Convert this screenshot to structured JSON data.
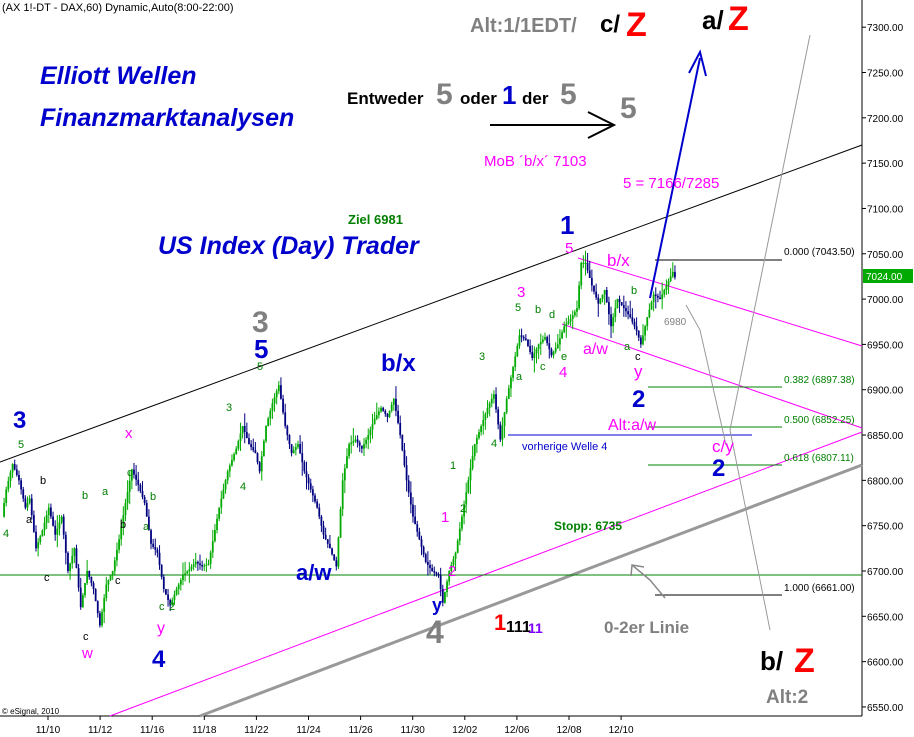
{
  "header": "(AX 1!-DT - DAX,60) Dynamic,Auto(8:00-22:00)",
  "footer_credit": "© eSignal, 2010",
  "chart_data": {
    "type": "candlestick",
    "symbol": "DAX",
    "interval": "60",
    "ylim": [
      6540,
      7330
    ],
    "y_ticks": [
      6550,
      6600,
      6650,
      6700,
      6750,
      6800,
      6850,
      6900,
      6950,
      7000,
      7050,
      7100,
      7150,
      7200,
      7250,
      7300
    ],
    "y_tick_labels": [
      "6550.00",
      "6600.00",
      "6650.00",
      "6700.00",
      "6750.00",
      "6800.00",
      "6850.00",
      "6900.00",
      "6950.00",
      "7000.00",
      "7050.00",
      "7100.00",
      "7150.00",
      "7200.00",
      "7250.00",
      "7300.00"
    ],
    "x_tick_labels": [
      "11/10",
      "11/12",
      "11/16",
      "11/18",
      "11/22",
      "11/24",
      "11/26",
      "11/30",
      "12/02",
      "12/06",
      "12/08",
      "12/10"
    ],
    "last_price": "7024.00",
    "path_points": [
      [
        0,
        6760
      ],
      [
        2,
        6790
      ],
      [
        5,
        6818
      ],
      [
        8,
        6800
      ],
      [
        11,
        6770
      ],
      [
        13,
        6780
      ],
      [
        16,
        6725
      ],
      [
        19,
        6745
      ],
      [
        22,
        6770
      ],
      [
        25,
        6740
      ],
      [
        28,
        6760
      ],
      [
        31,
        6700
      ],
      [
        34,
        6725
      ],
      [
        37,
        6660
      ],
      [
        40,
        6700
      ],
      [
        43,
        6680
      ],
      [
        46,
        6640
      ],
      [
        49,
        6685
      ],
      [
        52,
        6700
      ],
      [
        55,
        6735
      ],
      [
        58,
        6775
      ],
      [
        61,
        6812
      ],
      [
        64,
        6795
      ],
      [
        67,
        6775
      ],
      [
        70,
        6730
      ],
      [
        73,
        6720
      ],
      [
        76,
        6680
      ],
      [
        79,
        6662
      ],
      [
        82,
        6680
      ],
      [
        85,
        6695
      ],
      [
        88,
        6702
      ],
      [
        91,
        6710
      ],
      [
        94,
        6705
      ],
      [
        97,
        6708
      ],
      [
        102,
        6770
      ],
      [
        106,
        6810
      ],
      [
        110,
        6835
      ],
      [
        113,
        6860
      ],
      [
        116,
        6840
      ],
      [
        119,
        6830
      ],
      [
        121,
        6810
      ],
      [
        124,
        6860
      ],
      [
        127,
        6885
      ],
      [
        130,
        6905
      ],
      [
        133,
        6860
      ],
      [
        136,
        6830
      ],
      [
        139,
        6840
      ],
      [
        142,
        6810
      ],
      [
        145,
        6790
      ],
      [
        148,
        6770
      ],
      [
        151,
        6740
      ],
      [
        154,
        6725
      ],
      [
        157,
        6705
      ],
      [
        160,
        6800
      ],
      [
        163,
        6840
      ],
      [
        166,
        6845
      ],
      [
        169,
        6835
      ],
      [
        172,
        6850
      ],
      [
        175,
        6868
      ],
      [
        178,
        6880
      ],
      [
        181,
        6870
      ],
      [
        184,
        6890
      ],
      [
        187,
        6850
      ],
      [
        190,
        6800
      ],
      [
        193,
        6760
      ],
      [
        196,
        6735
      ],
      [
        199,
        6710
      ],
      [
        202,
        6700
      ],
      [
        205,
        6695
      ],
      [
        207,
        6665
      ],
      [
        210,
        6700
      ],
      [
        213,
        6720
      ],
      [
        216,
        6760
      ],
      [
        219,
        6800
      ],
      [
        222,
        6840
      ],
      [
        225,
        6860
      ],
      [
        228,
        6880
      ],
      [
        231,
        6895
      ],
      [
        234,
        6845
      ],
      [
        237,
        6890
      ],
      [
        240,
        6925
      ],
      [
        243,
        6960
      ],
      [
        246,
        6955
      ],
      [
        249,
        6935
      ],
      [
        252,
        6950
      ],
      [
        255,
        6958
      ],
      [
        258,
        6938
      ],
      [
        261,
        6950
      ],
      [
        264,
        6970
      ],
      [
        267,
        6978
      ],
      [
        270,
        6990
      ],
      [
        272,
        7040
      ],
      [
        274,
        7040
      ],
      [
        277,
        7015
      ],
      [
        280,
        6995
      ],
      [
        283,
        7010
      ],
      [
        286,
        6970
      ],
      [
        289,
        7000
      ],
      [
        292,
        6990
      ],
      [
        295,
        6980
      ],
      [
        298,
        6965
      ],
      [
        300,
        6950
      ],
      [
        303,
        6980
      ],
      [
        306,
        7005
      ],
      [
        309,
        7000
      ],
      [
        312,
        7015
      ],
      [
        315,
        7030
      ],
      [
        316,
        7024
      ]
    ],
    "fib_levels": [
      {
        "label": "0.000 (7043.50)",
        "value": 7043.5
      },
      {
        "label": "0.382 (6897.38)",
        "value": 6897.38
      },
      {
        "label": "0.500 (6852.25)",
        "value": 6852.25
      },
      {
        "label": "0.618 (6807.11)",
        "value": 6807.11
      },
      {
        "label": "1.000 (6661.00)",
        "value": 6661.0
      }
    ],
    "horizontal_levels": {
      "support_green": 6683,
      "previous_wave4": 6845
    },
    "title": "US Index (Day) Trader"
  },
  "titles": {
    "brand_line1": "Elliott Wellen",
    "brand_line2": "Finanzmarktanalysen",
    "us_index": "US Index (Day) Trader"
  },
  "annotations": {
    "entweder": "Entweder",
    "big5a": "5",
    "oder": "oder",
    "blue1": "1",
    "der": "der",
    "big5b": "5",
    "big5c": "5",
    "alt1": "Alt:1/1EDT/",
    "c_slash": "c/",
    "z_top": "Z",
    "a_slash": "a/",
    "z_top2": "Z",
    "mob": "MoB ´b/x´ 7103",
    "target5": "5 = 7166/7285",
    "ziel": "Ziel 6981",
    "stopp": "Stopp: 6735",
    "vorherige": "vorherige Welle 4",
    "linie": "0-2er Linie",
    "b_slash": "b/ ",
    "z_bottom": "Z",
    "alt2": "Alt:2",
    "ba6980": "6980",
    "alt_aw": "Alt:a/w",
    "c_y": "c/y",
    "two_right": "2",
    "one_red": "1",
    "ones_black": "111",
    "ones_violet": "11",
    "bx_wave": "b/x",
    "aw_wave": "a/w",
    "bx_right": "b/x",
    "aw_right": "a/w",
    "y_mid": "y",
    "two_mid": "2",
    "one_top": "1",
    "five_top": "5",
    "three_left": "3",
    "five_left": "5",
    "three_gray": "3",
    "five_blue": "5",
    "four_blue": "4",
    "four_gray": "4",
    "x_mag": "x",
    "w_mag": "w",
    "y_mag": "y",
    "y_bottom": "y",
    "two_mag_bottom": "2",
    "one_mag": "1",
    "three_mag": "3",
    "four_mag": "4",
    "five_mag_top": "5",
    "a_small": "a",
    "b_small": "b",
    "c_small": "c",
    "d_small": "d",
    "e_small": "e",
    "one_g": "1",
    "two_g": "2",
    "three_g": "3",
    "four_g": "4",
    "five_g": "5"
  },
  "colors": {
    "candle_up": "#00aa00",
    "candle_down": "#000080",
    "magenta": "#ff00ff",
    "blue": "#0000ff",
    "red": "#ff0000",
    "green": "#008000",
    "gray": "#808080"
  }
}
